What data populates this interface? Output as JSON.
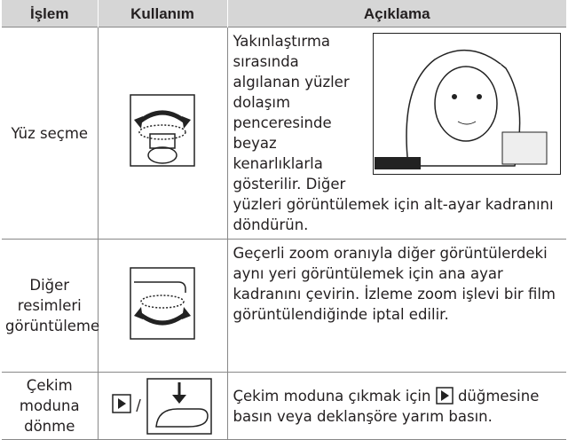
{
  "table": {
    "header": [
      "İşlem",
      "Kullanım",
      "Açıklama"
    ],
    "rows": [
      {
        "action": "Yüz seçme",
        "description": "Yakınlaştırma sırasında algılanan yüzler dolaşım penceresinde beyaz kenarlıklarla gösterilir. Diğer yüzleri görüntülemek için alt-ayar kadranını döndürün."
      },
      {
        "action": "Diğer resimleri görüntüleme",
        "description": "Geçerli zoom oranıyla diğer görüntülerdeki aynı yeri görüntülemek için ana ayar kadranını çevirin. İzleme zoom işlevi bir film görüntülendiğinde iptal edilir."
      },
      {
        "action": "Çekim moduna dönme",
        "usage": "/",
        "description": [
          "Çekim moduna çıkmak için",
          "düğmesine basın veya deklanşöre yarım basın."
        ]
      }
    ]
  }
}
